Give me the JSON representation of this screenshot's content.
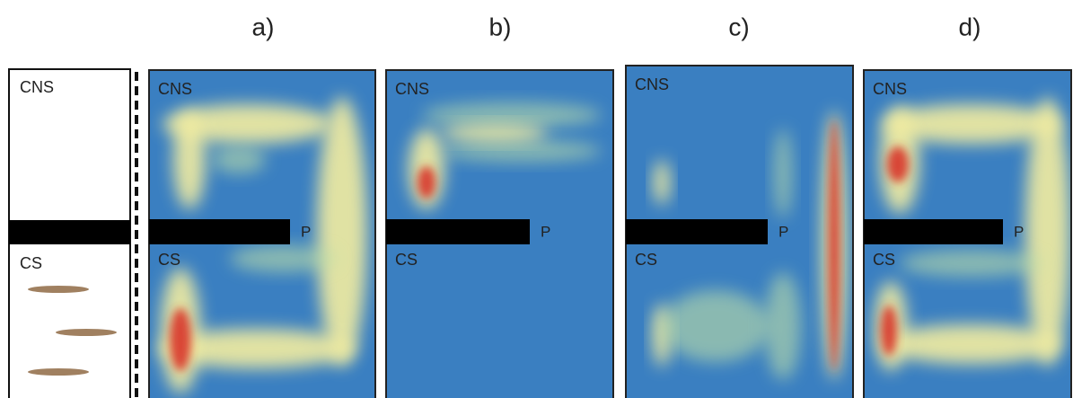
{
  "panel_labels": [
    "a)",
    "b)",
    "c)",
    "d)"
  ],
  "schematic": {
    "top_label": "CNS",
    "bottom_label": "CS"
  },
  "panels": [
    {
      "top_label": "CNS",
      "bottom_label": "CS",
      "partition_label": "P"
    },
    {
      "top_label": "CNS",
      "bottom_label": "CS",
      "partition_label": "P"
    },
    {
      "top_label": "CNS",
      "bottom_label": "CS",
      "partition_label": "P"
    },
    {
      "top_label": "CNS",
      "bottom_label": "CS",
      "partition_label": "P"
    }
  ]
}
